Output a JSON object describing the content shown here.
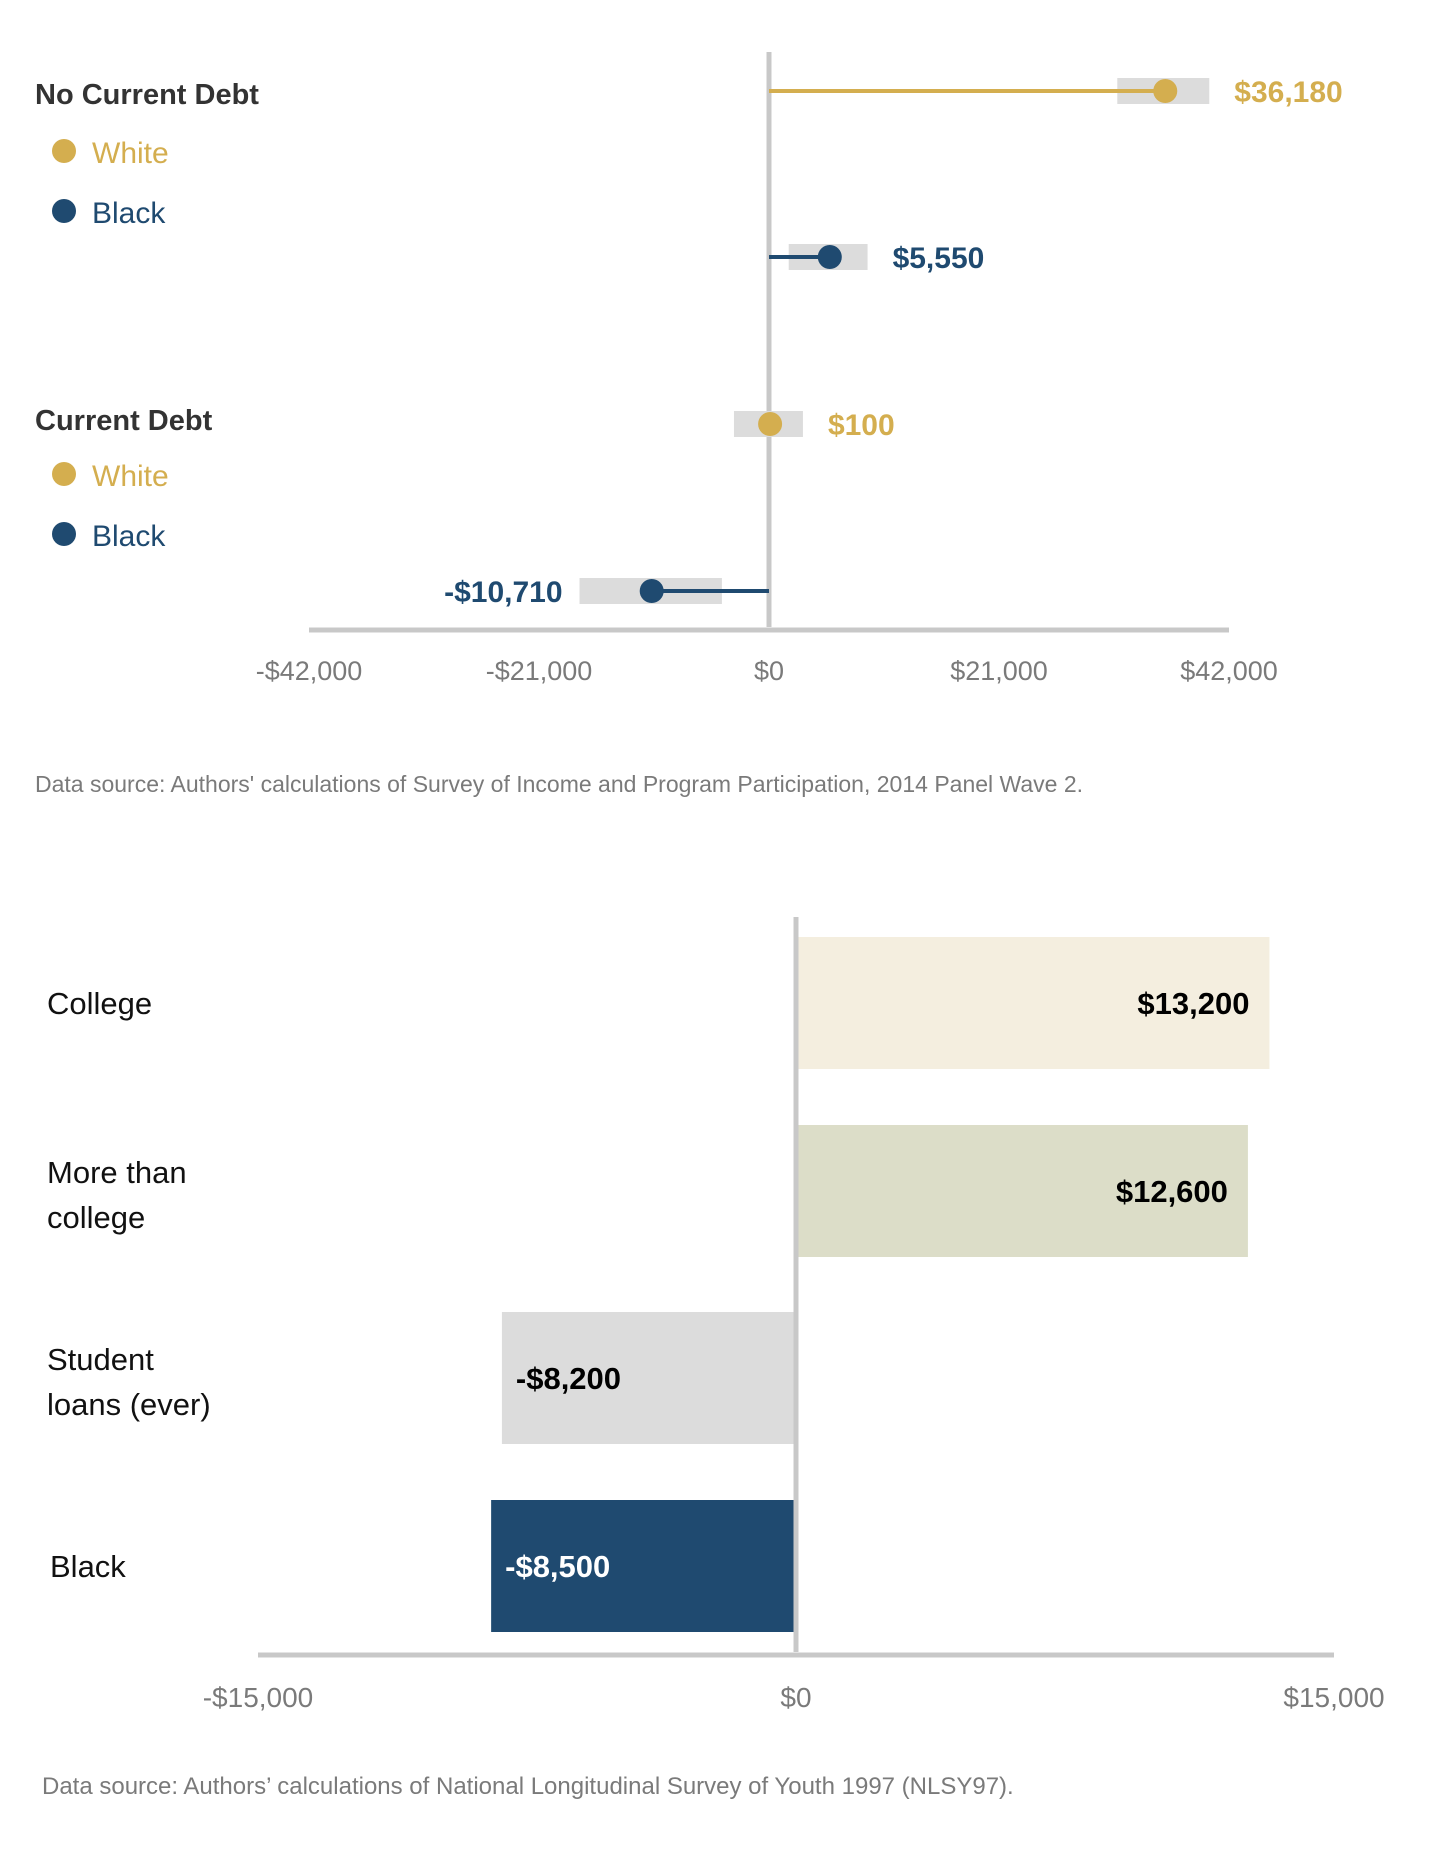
{
  "colors": {
    "white_series": "#D4AE4F",
    "black_series": "#1F4A70",
    "ci_band": "#DCDCDC",
    "axis": "#C8C8C8",
    "tick_text": "#7A7A7A",
    "group_title": "#333333",
    "source_text": "#7A7A7A",
    "bar_college": "#F4EEDF",
    "bar_more_than_college": "#DCDDC8",
    "bar_student_loans": "#DCDCDC",
    "bar_black": "#1F4A70"
  },
  "chart_data": [
    {
      "type": "scatter",
      "xlim": [
        -42000,
        42000
      ],
      "xticks": [
        -42000,
        -21000,
        0,
        21000,
        42000
      ],
      "xtick_labels": [
        "-$42,000",
        "-$21,000",
        "$0",
        "$21,000",
        "$42,000"
      ],
      "groups": [
        {
          "title": "No Current  Debt",
          "legend": [
            {
              "label": "White",
              "color": "#D4AE4F"
            },
            {
              "label": "Black",
              "color": "#1F4A70"
            }
          ],
          "points": [
            {
              "series": "White",
              "value": 36180,
              "label": "$36,180",
              "ci": [
                31800,
                40200
              ]
            },
            {
              "series": "Black",
              "value": 5550,
              "label": "$5,550",
              "ci": [
                1800,
                9000
              ]
            }
          ]
        },
        {
          "title": "Current  Debt",
          "legend": [
            {
              "label": "White",
              "color": "#D4AE4F"
            },
            {
              "label": "Black",
              "color": "#1F4A70"
            }
          ],
          "points": [
            {
              "series": "White",
              "value": 100,
              "label": "$100",
              "ci": [
                -3200,
                3100
              ]
            },
            {
              "series": "Black",
              "value": -10710,
              "label": "-$10,710",
              "ci": [
                -17300,
                -4300
              ]
            }
          ]
        }
      ],
      "source": "Data source: Authors' calculations  of Survey of Income and Program Participation,  2014 Panel Wave 2."
    },
    {
      "type": "bar",
      "orientation": "horizontal",
      "xlim": [
        -15000,
        15000
      ],
      "xticks": [
        -15000,
        0,
        15000
      ],
      "xtick_labels": [
        "-$15,000",
        "$0",
        "$15,000"
      ],
      "categories": [
        {
          "label_lines": [
            "College"
          ],
          "value": 13200,
          "label": "$13,200"
        },
        {
          "label_lines": [
            "More than",
            "college"
          ],
          "value": 12600,
          "label": "$12,600"
        },
        {
          "label_lines": [
            "Student",
            "loans (ever)"
          ],
          "value": -8200,
          "label": "-$8,200"
        },
        {
          "label_lines": [
            "Black"
          ],
          "value": -8500,
          "label": "-$8,500"
        }
      ],
      "source": "Data source: Authors’ calculations  of National  Longitudinal  Survey of Youth 1997 (NLSY97)."
    }
  ]
}
